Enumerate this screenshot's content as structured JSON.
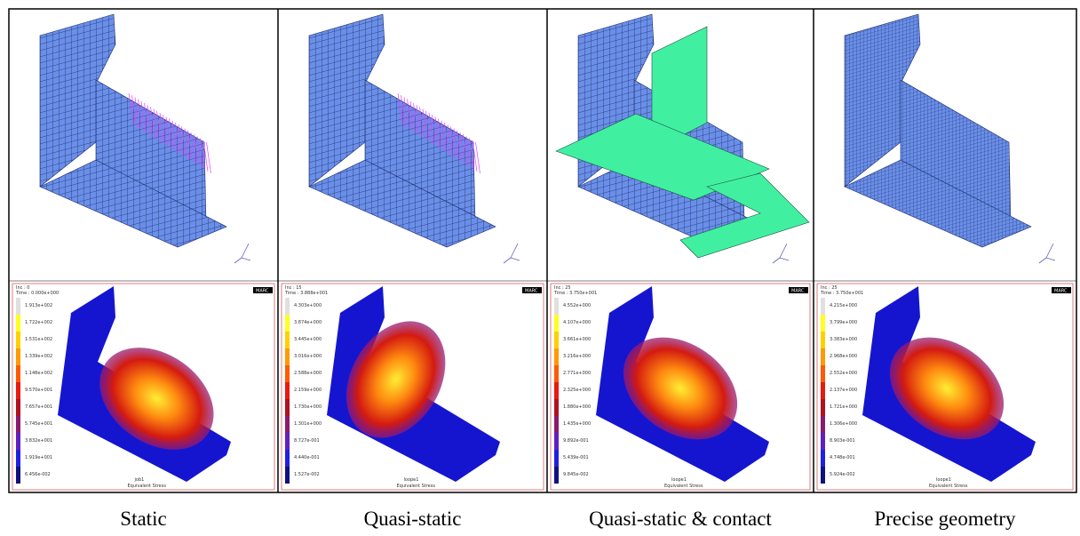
{
  "panels": [
    {
      "caption": "Static",
      "result": {
        "increment": "Inc : 0",
        "time": "Time : 0.000e+000",
        "job": "job1",
        "variable": "Equivalent Stress",
        "logo": "MARC",
        "legend": [
          "1.913e+002",
          "1.722e+002",
          "1.531e+002",
          "1.339e+002",
          "1.148e+002",
          "9.570e+001",
          "7.657e+001",
          "5.745e+001",
          "3.832e+001",
          "1.919e+001",
          "6.456e-002"
        ]
      }
    },
    {
      "caption": "Quasi-static",
      "result": {
        "increment": "Inc : 15",
        "time": "Time : 3.888e+001",
        "job": "loope1",
        "variable": "Equivalent Stress",
        "logo": "MARC",
        "legend": [
          "4.303e+000",
          "3.874e+000",
          "3.445e+000",
          "3.016e+000",
          "2.588e+000",
          "2.159e+000",
          "1.730e+000",
          "1.301e+000",
          "8.727e-001",
          "4.440e-001",
          "1.527e-002"
        ]
      }
    },
    {
      "caption": "Quasi-static & contact",
      "result": {
        "increment": "Inc : 25",
        "time": "Time : 3.750e+001",
        "job": "loope1",
        "variable": "Equivalent Stress",
        "logo": "MARC",
        "legend": [
          "4.552e+000",
          "4.107e+000",
          "3.661e+000",
          "3.216e+000",
          "2.771e+000",
          "2.325e+000",
          "1.880e+000",
          "1.435e+000",
          "9.892e-001",
          "5.439e-001",
          "9.845e-002"
        ]
      }
    },
    {
      "caption": "Precise geometry",
      "result": {
        "increment": "Inc : 25",
        "time": "Time : 3.750e+001",
        "job": "loope1",
        "variable": "Equivalent Stress",
        "logo": "MARC",
        "legend": [
          "4.215e+000",
          "3.799e+000",
          "3.383e+000",
          "2.968e+000",
          "2.552e+000",
          "2.137e+000",
          "1.721e+000",
          "1.306e+000",
          "8.903e-001",
          "4.748e-001",
          "5.924e-002"
        ]
      }
    }
  ]
}
